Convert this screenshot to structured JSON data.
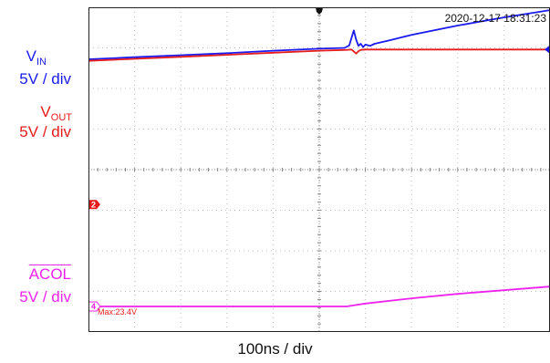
{
  "timestamp": "2020-12-17 18:31:23",
  "labels": {
    "vin_main": "V",
    "vin_sub": "IN",
    "vin_scale": "5V / div",
    "vout_main": "V",
    "vout_sub": "OUT",
    "vout_scale": "5V / div",
    "acol_main": "ACOL",
    "acol_scale": "5V / div",
    "time_scale": "100ns / div"
  },
  "markers": {
    "ch2": "2",
    "ch4": "4",
    "max_readout": "Max:23.4V"
  },
  "colors": {
    "vin": "#1a1aee",
    "vout": "#e51c1c",
    "acol": "#ee22ee",
    "grid": "#bdbdbd",
    "frame": "#222222"
  },
  "chart_data": {
    "type": "line",
    "x_unit": "div",
    "y_unit": "div",
    "xlim": [
      -5,
      5
    ],
    "ylim": [
      -4,
      4
    ],
    "grid": true,
    "series": [
      {
        "name": "VIN",
        "color": "#1a1aee",
        "x": [
          -5,
          -4,
          -3,
          -2,
          -1,
          0,
          0.55,
          0.65,
          0.75,
          0.8,
          0.85,
          0.9,
          0.95,
          1.0,
          1.1,
          1.2,
          1.5,
          2,
          3,
          4,
          5
        ],
        "y": [
          2.72,
          2.77,
          2.82,
          2.87,
          2.93,
          2.98,
          3.0,
          3.06,
          3.43,
          3.2,
          3.05,
          3.1,
          3.02,
          3.08,
          3.05,
          3.1,
          3.18,
          3.32,
          3.55,
          3.75,
          3.93
        ]
      },
      {
        "name": "VOUT",
        "color": "#e51c1c",
        "x": [
          -5,
          -4,
          -3,
          -2,
          -1,
          0,
          0.6,
          0.7,
          0.8,
          0.85,
          0.9,
          1.0,
          1.2,
          2,
          3,
          4,
          5
        ],
        "y": [
          2.68,
          2.73,
          2.78,
          2.83,
          2.88,
          2.93,
          2.95,
          2.96,
          2.86,
          2.92,
          2.95,
          2.96,
          2.96,
          2.96,
          2.96,
          2.96,
          2.96
        ]
      },
      {
        "name": "ACOL",
        "color": "#ee22ee",
        "x": [
          -5,
          -4,
          -3,
          -2,
          -1,
          0,
          0.6,
          0.7,
          1,
          2,
          3,
          4,
          5
        ],
        "y": [
          -3.37,
          -3.37,
          -3.37,
          -3.37,
          -3.37,
          -3.37,
          -3.37,
          -3.35,
          -3.3,
          -3.17,
          -3.06,
          -2.97,
          -2.88
        ]
      }
    ]
  }
}
